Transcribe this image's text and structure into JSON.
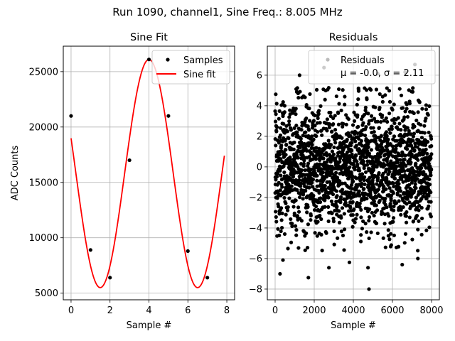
{
  "suptitle": "Run 1090, channel1, Sine Freq.: 8.005 MHz",
  "chart_data": [
    {
      "type": "scatter+line",
      "title": "Sine Fit",
      "xlabel": "Sample #",
      "ylabel": "ADC Counts",
      "xlim": [
        -0.4,
        8.4
      ],
      "ylim": [
        4400,
        27300
      ],
      "xticks": [
        0,
        2,
        4,
        6,
        8
      ],
      "yticks": [
        5000,
        10000,
        15000,
        20000,
        25000
      ],
      "grid": true,
      "legend": {
        "placement": "top-right",
        "entries": [
          "Samples",
          "Sine fit"
        ]
      },
      "series": [
        {
          "name": "Samples",
          "kind": "scatter",
          "color": "#000000",
          "x": [
            0,
            1,
            2,
            3,
            4,
            5,
            6,
            7
          ],
          "y": [
            21000,
            8900,
            6400,
            17000,
            26100,
            21000,
            8800,
            6400
          ]
        },
        {
          "name": "Sine fit",
          "kind": "line",
          "color": "#ff0000",
          "model": {
            "offset": 15800,
            "amplitude": 10300,
            "period": 5.0,
            "phase_x": 0.4,
            "x_range": [
              0,
              7.875
            ]
          }
        }
      ]
    },
    {
      "type": "scatter",
      "title": "Residuals",
      "xlabel": "Sample #",
      "ylabel": "",
      "xlim": [
        -400,
        8400
      ],
      "ylim": [
        -8.7,
        7.9
      ],
      "xticks": [
        0,
        2000,
        4000,
        6000,
        8000
      ],
      "yticks": [
        -8,
        -6,
        -4,
        -2,
        0,
        2,
        4,
        6
      ],
      "grid": true,
      "legend": {
        "placement": "top-right",
        "entries": [
          "Residuals",
          "μ = -0.0, σ = 2.11"
        ]
      },
      "series": [
        {
          "name": "Residuals",
          "kind": "scatter",
          "color": "#000000",
          "n_points": 8000,
          "mean": -0.0,
          "sigma": 2.11,
          "clip": [
            -5.5,
            5.2
          ],
          "outliers": [
            {
              "x": 250,
              "y": -7.0
            },
            {
              "x": 1700,
              "y": -7.25
            },
            {
              "x": 2750,
              "y": -6.6
            },
            {
              "x": 3800,
              "y": -6.25
            },
            {
              "x": 4800,
              "y": -8.0
            },
            {
              "x": 4750,
              "y": -6.6
            },
            {
              "x": 6500,
              "y": -6.4
            },
            {
              "x": 7300,
              "y": -6.0
            },
            {
              "x": 2500,
              "y": 6.5
            },
            {
              "x": 1250,
              "y": 6.0
            },
            {
              "x": 7150,
              "y": 6.7
            },
            {
              "x": 6650,
              "y": 6.2
            },
            {
              "x": 400,
              "y": -6.1
            },
            {
              "x": 5250,
              "y": 6.1
            }
          ]
        }
      ]
    }
  ]
}
